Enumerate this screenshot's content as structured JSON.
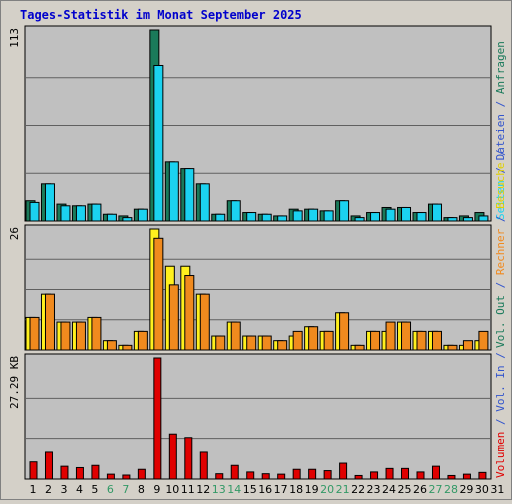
{
  "title": "Tages-Statistik im Monat September 2025",
  "colors": {
    "background": "#d4d0c8",
    "plot_bg": "#c0c0c0",
    "title": "#0000cc",
    "weekday_day": "#000000",
    "weekend_day": "#339966",
    "anfragen": "#1a7a5a",
    "dateien": "#1bd2f0",
    "seiten": "#1bd2f0",
    "besuche": "#fff01e",
    "rechner": "#f08a1e",
    "volumen": "#e00000",
    "label_blue": "#3355cc",
    "label_green": "#1a7a5a",
    "label_cyan": "#1bd2f0",
    "label_yellow": "#e0d000",
    "label_orange": "#f08a1e",
    "label_red": "#e00000"
  },
  "chart_data": [
    {
      "type": "bar",
      "panel": "requests",
      "x": [
        1,
        2,
        3,
        4,
        5,
        6,
        7,
        8,
        9,
        10,
        11,
        12,
        13,
        14,
        15,
        16,
        17,
        18,
        19,
        20,
        21,
        22,
        23,
        24,
        25,
        26,
        27,
        28,
        29,
        30
      ],
      "y_max_label": "113",
      "ylim": [
        0,
        113
      ],
      "series": [
        {
          "name": "Anfragen",
          "values": [
            12,
            22,
            10,
            9,
            10,
            4,
            3,
            7,
            113,
            35,
            31,
            22,
            4,
            12,
            5,
            4,
            3,
            7,
            7,
            6,
            12,
            3,
            5,
            8,
            8,
            5,
            10,
            2,
            3,
            5
          ]
        },
        {
          "name": "Dateien",
          "values": [
            11,
            22,
            9,
            9,
            10,
            4,
            2,
            7,
            92,
            35,
            31,
            22,
            4,
            12,
            5,
            4,
            3,
            6,
            7,
            6,
            12,
            2,
            5,
            7,
            8,
            5,
            10,
            2,
            2,
            3
          ]
        }
      ]
    },
    {
      "type": "bar",
      "panel": "visits",
      "x": [
        1,
        2,
        3,
        4,
        5,
        6,
        7,
        8,
        9,
        10,
        11,
        12,
        13,
        14,
        15,
        16,
        17,
        18,
        19,
        20,
        21,
        22,
        23,
        24,
        25,
        26,
        27,
        28,
        29,
        30
      ],
      "y_max_label": "26",
      "ylim": [
        0,
        26
      ],
      "series": [
        {
          "name": "Besuche",
          "values": [
            7,
            12,
            6,
            6,
            7,
            2,
            1,
            4,
            26,
            18,
            18,
            12,
            3,
            6,
            3,
            3,
            2,
            3,
            5,
            4,
            8,
            1,
            4,
            4,
            6,
            4,
            4,
            1,
            1,
            2
          ]
        },
        {
          "name": "Rechner",
          "values": [
            7,
            12,
            6,
            6,
            7,
            2,
            1,
            4,
            24,
            14,
            16,
            12,
            3,
            6,
            3,
            3,
            2,
            4,
            5,
            4,
            8,
            1,
            4,
            6,
            6,
            4,
            4,
            1,
            2,
            4
          ]
        }
      ]
    },
    {
      "type": "bar",
      "panel": "volume",
      "x": [
        1,
        2,
        3,
        4,
        5,
        6,
        7,
        8,
        9,
        10,
        11,
        12,
        13,
        14,
        15,
        16,
        17,
        18,
        19,
        20,
        21,
        22,
        23,
        24,
        25,
        26,
        27,
        28,
        29,
        30
      ],
      "y_max_label": "27.29 KB",
      "ylim": [
        0,
        27.29
      ],
      "series": [
        {
          "name": "Volumen",
          "values": [
            3.9,
            6.1,
            2.9,
            2.6,
            3.1,
            1.1,
            0.9,
            2.2,
            27.29,
            10.1,
            9.3,
            6.1,
            1.2,
            3.1,
            1.6,
            1.2,
            1.1,
            2.2,
            2.2,
            1.9,
            3.6,
            0.8,
            1.6,
            2.4,
            2.4,
            1.6,
            2.9,
            0.8,
            1.1,
            1.5
          ]
        }
      ]
    }
  ],
  "x_axis_labels": [
    "1",
    "2",
    "3",
    "4",
    "5",
    "6",
    "7",
    "8",
    "9",
    "10",
    "11",
    "12",
    "13",
    "14",
    "15",
    "16",
    "17",
    "18",
    "19",
    "20",
    "21",
    "22",
    "23",
    "24",
    "25",
    "26",
    "27",
    "28",
    "29",
    "30",
    "31"
  ],
  "weekend_days": [
    6,
    7,
    13,
    14,
    20,
    21,
    27,
    28
  ],
  "right_labels": {
    "top": [
      {
        "text": "Seiten",
        "color": "#1bd2f0"
      },
      {
        "text": " / ",
        "color": "#3355cc"
      },
      {
        "text": "Dateien",
        "color": "#3355cc"
      },
      {
        "text": " / ",
        "color": "#3355cc"
      },
      {
        "text": "Anfragen",
        "color": "#1a7a5a"
      }
    ],
    "middle": [
      {
        "text": "Vol. Out",
        "color": "#1a7a5a"
      },
      {
        "text": " / ",
        "color": "#3355cc"
      },
      {
        "text": "Rechner",
        "color": "#f08a1e"
      },
      {
        "text": " / ",
        "color": "#3355cc"
      },
      {
        "text": "Besuche",
        "color": "#e0d000"
      },
      {
        "text": " / ",
        "color": "#3355cc"
      }
    ],
    "bottom": [
      {
        "text": "Volumen",
        "color": "#e00000"
      },
      {
        "text": " / ",
        "color": "#3355cc"
      },
      {
        "text": "Vol. In",
        "color": "#3355cc"
      },
      {
        "text": " / ",
        "color": "#3355cc"
      }
    ]
  }
}
